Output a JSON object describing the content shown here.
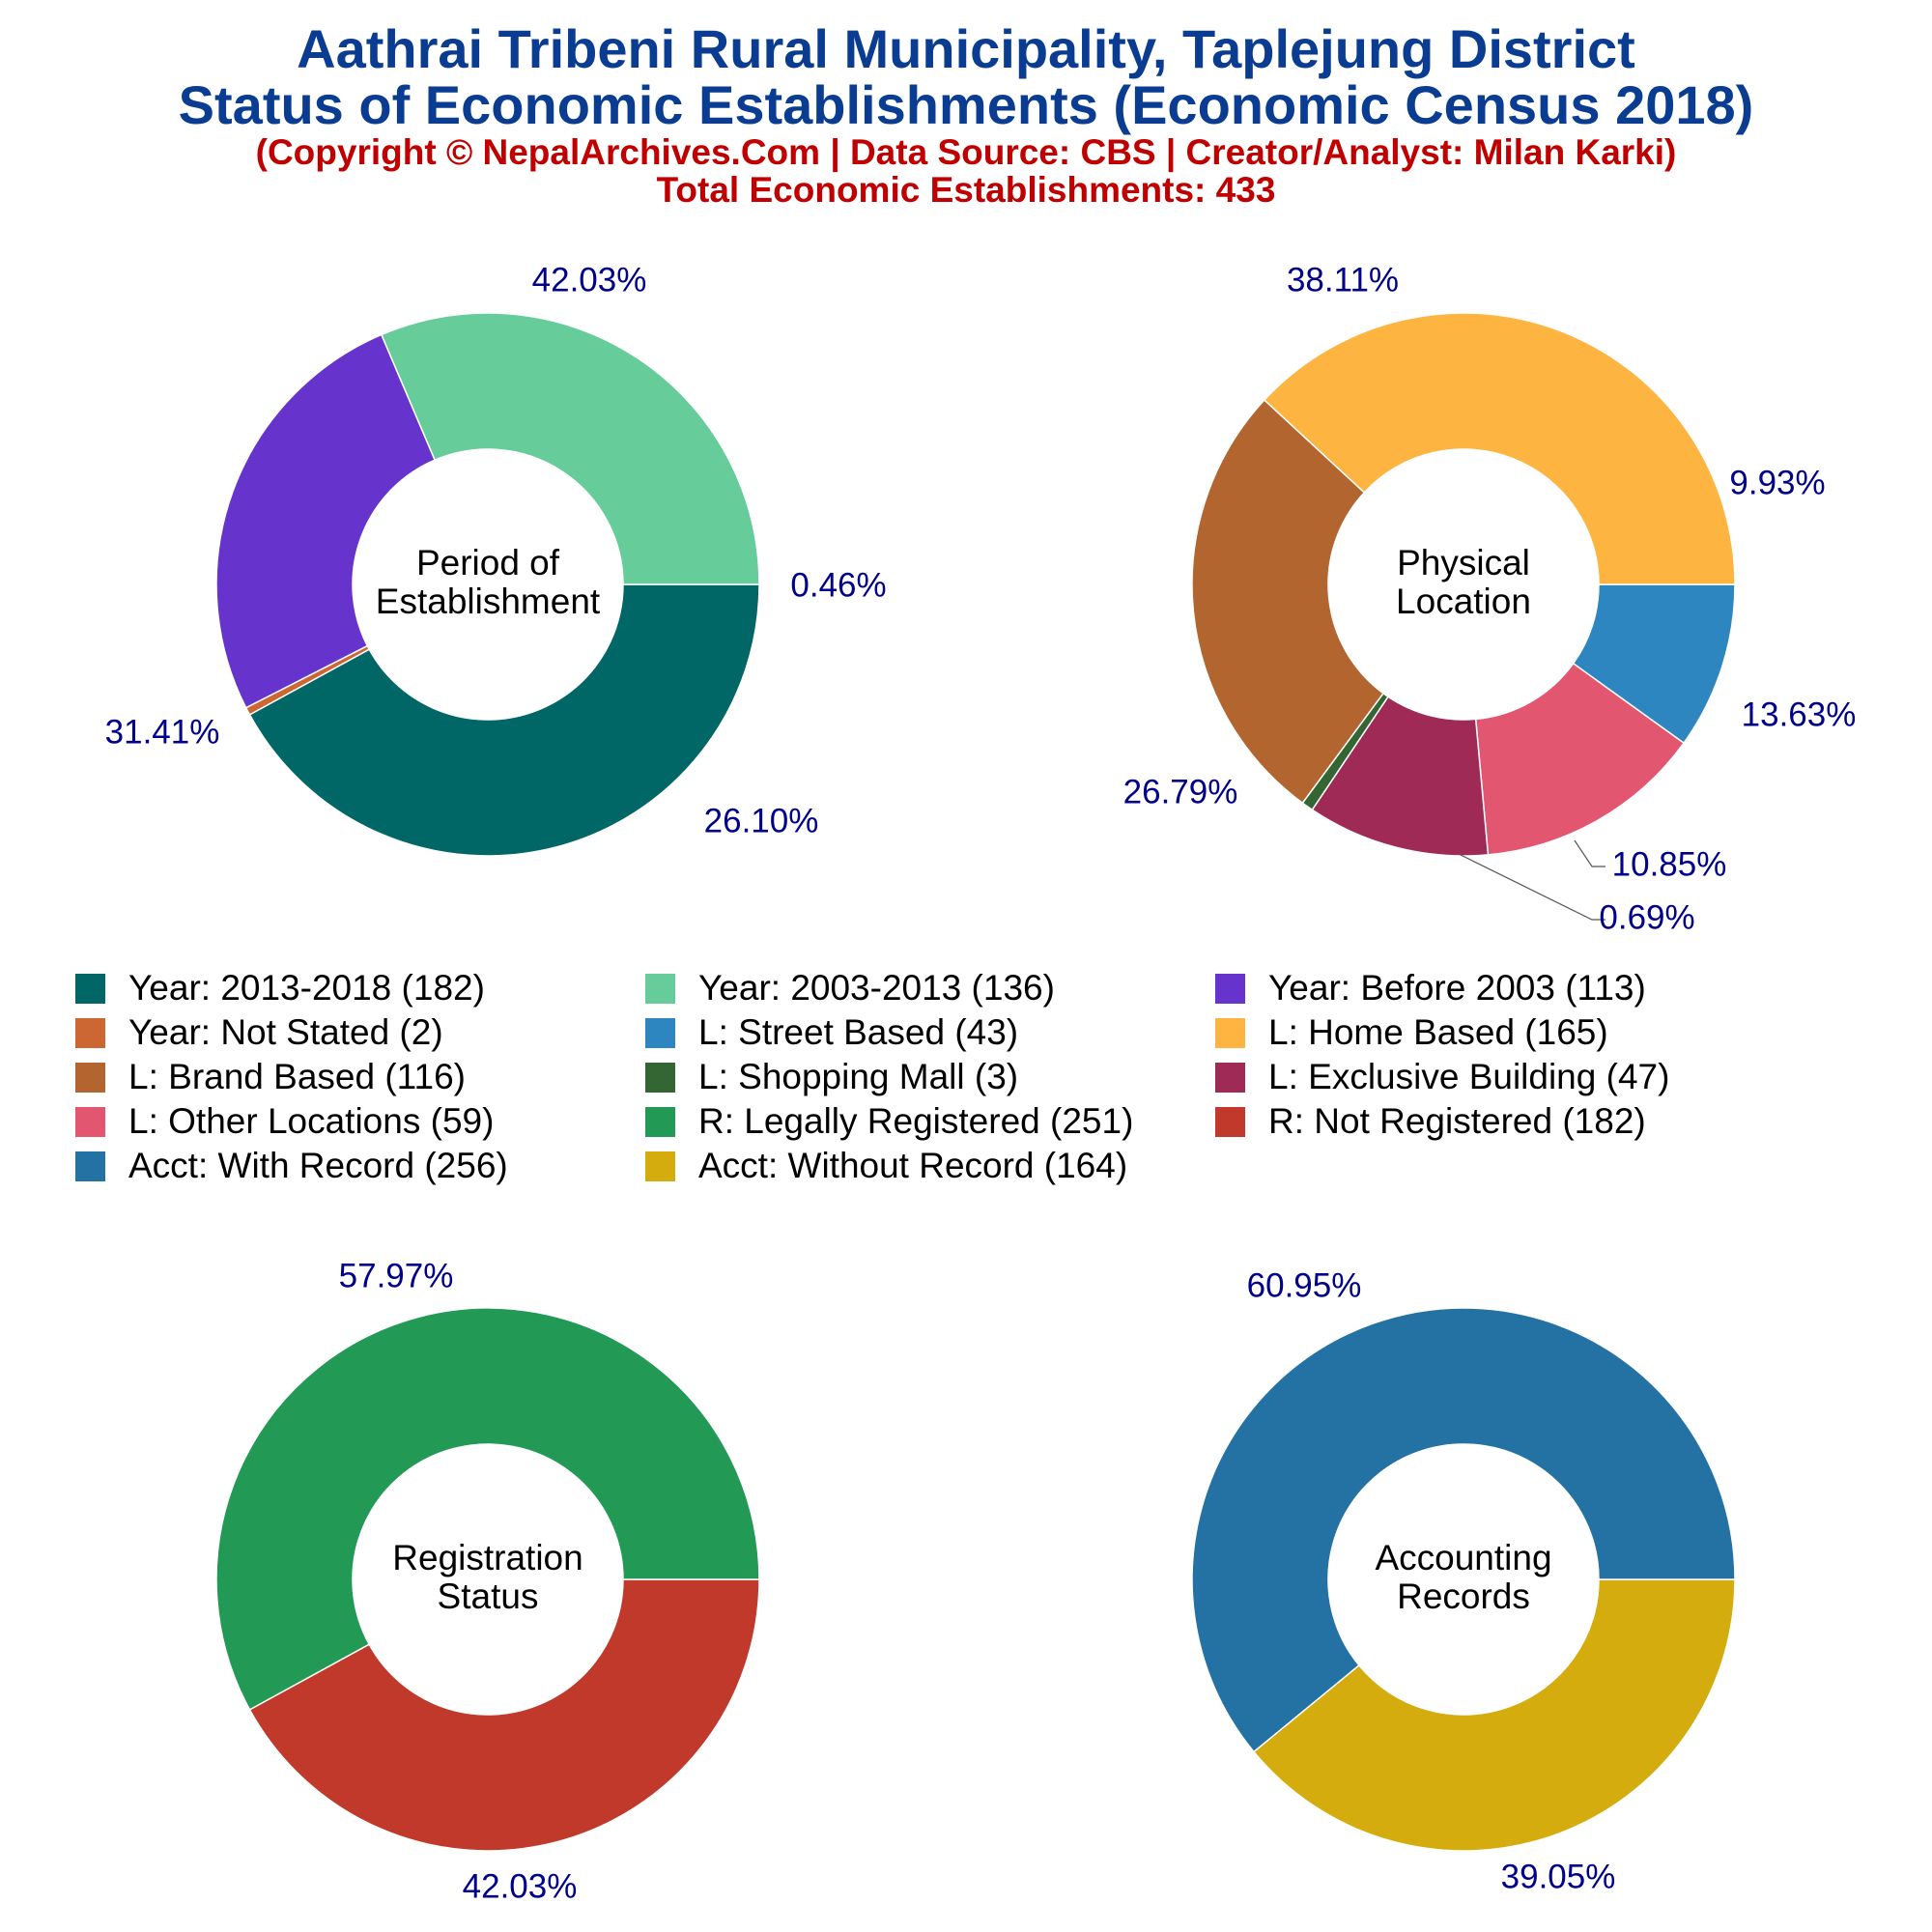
{
  "header": {
    "title_line1": "Aathrai Tribeni Rural Municipality, Taplejung District",
    "title_line2": "Status of Economic Establishments (Economic Census 2018)",
    "subtitle_line1": "(Copyright © NepalArchives.Com | Data Source: CBS | Creator/Analyst: Milan Karki)",
    "subtitle_line2": "Total Economic Establishments: 433"
  },
  "legend": {
    "items": [
      {
        "label": "Year: 2013-2018 (182)",
        "color": "#006666"
      },
      {
        "label": "Year: 2003-2013 (136)",
        "color": "#66cc99"
      },
      {
        "label": "Year: Before 2003 (113)",
        "color": "#6633cc"
      },
      {
        "label": "Year: Not Stated (2)",
        "color": "#cc6633"
      },
      {
        "label": "L: Street Based (43)",
        "color": "#2e86c1"
      },
      {
        "label": "L: Home Based (165)",
        "color": "#fdb441"
      },
      {
        "label": "L: Brand Based (116)",
        "color": "#b2652e"
      },
      {
        "label": "L: Shopping Mall (3)",
        "color": "#336633"
      },
      {
        "label": "L: Exclusive Building (47)",
        "color": "#9e2a55"
      },
      {
        "label": "L: Other Locations (59)",
        "color": "#e35670"
      },
      {
        "label": "R: Legally Registered (251)",
        "color": "#229954"
      },
      {
        "label": "R: Not Registered (182)",
        "color": "#c0392b"
      },
      {
        "label": "Acct: With Record (256)",
        "color": "#2471a3"
      },
      {
        "label": "Acct: Without Record (164)",
        "color": "#d4ac0d"
      }
    ]
  },
  "chart_data": [
    {
      "type": "pie",
      "variant": "donut",
      "center_label": [
        "Period of",
        "Establishment"
      ],
      "slices": [
        {
          "name": "Year: 2013-2018",
          "value": 182,
          "percent_label": "42.03%",
          "color": "#006666"
        },
        {
          "name": "Year: Not Stated",
          "value": 2,
          "percent_label": "0.46%",
          "color": "#cc6633"
        },
        {
          "name": "Year: Before 2003",
          "value": 113,
          "percent_label": "26.10%",
          "color": "#6633cc"
        },
        {
          "name": "Year: 2003-2013",
          "value": 136,
          "percent_label": "31.41%",
          "color": "#66cc99"
        }
      ]
    },
    {
      "type": "pie",
      "variant": "donut",
      "center_label": [
        "Physical",
        "Location"
      ],
      "slices": [
        {
          "name": "L: Street Based",
          "value": 43,
          "percent_label": "9.93%",
          "color": "#2e86c1"
        },
        {
          "name": "L: Other Locations",
          "value": 59,
          "percent_label": "13.63%",
          "color": "#e35670"
        },
        {
          "name": "L: Exclusive Building",
          "value": 47,
          "percent_label": "10.85%",
          "color": "#9e2a55"
        },
        {
          "name": "L: Shopping Mall",
          "value": 3,
          "percent_label": "0.69%",
          "color": "#336633"
        },
        {
          "name": "L: Brand Based",
          "value": 116,
          "percent_label": "26.79%",
          "color": "#b2652e"
        },
        {
          "name": "L: Home Based",
          "value": 165,
          "percent_label": "38.11%",
          "color": "#fdb441"
        }
      ]
    },
    {
      "type": "pie",
      "variant": "donut",
      "center_label": [
        "Registration",
        "Status"
      ],
      "slices": [
        {
          "name": "R: Not Registered",
          "value": 182,
          "percent_label": "42.03%",
          "color": "#c0392b"
        },
        {
          "name": "R: Legally Registered",
          "value": 251,
          "percent_label": "57.97%",
          "color": "#229954"
        }
      ]
    },
    {
      "type": "pie",
      "variant": "donut",
      "center_label": [
        "Accounting",
        "Records"
      ],
      "slices": [
        {
          "name": "Acct: Without Record",
          "value": 164,
          "percent_label": "39.05%",
          "color": "#d4ac0d"
        },
        {
          "name": "Acct: With Record",
          "value": 256,
          "percent_label": "60.95%",
          "color": "#2471a3"
        }
      ]
    }
  ]
}
